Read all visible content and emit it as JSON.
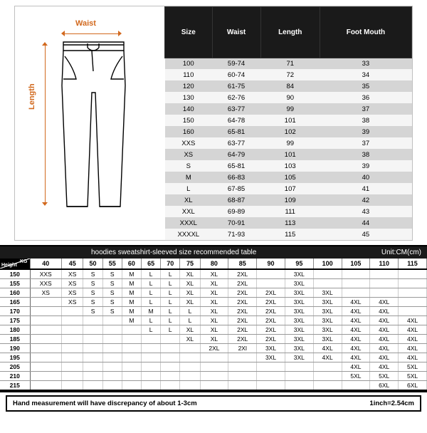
{
  "diagram": {
    "waist_label": "Waist",
    "length_label": "Length",
    "arrow_color": "#d2691e",
    "pants_stroke": "#000000"
  },
  "size_table": {
    "headers": [
      "Size",
      "Waist",
      "Length",
      "Foot Mouth"
    ],
    "header_bg": "#1a1a1a",
    "header_fg": "#ffffff",
    "row_alt_bg": "#d5d5d5",
    "row_bg": "#f5f5f5",
    "rows": [
      [
        "100",
        "59-74",
        "71",
        "33"
      ],
      [
        "110",
        "60-74",
        "72",
        "34"
      ],
      [
        "120",
        "61-75",
        "84",
        "35"
      ],
      [
        "130",
        "62-76",
        "90",
        "36"
      ],
      [
        "140",
        "63-77",
        "99",
        "37"
      ],
      [
        "150",
        "64-78",
        "101",
        "38"
      ],
      [
        "160",
        "65-81",
        "102",
        "39"
      ],
      [
        "XXS",
        "63-77",
        "99",
        "37"
      ],
      [
        "XS",
        "64-79",
        "101",
        "38"
      ],
      [
        "S",
        "65-81",
        "103",
        "39"
      ],
      [
        "M",
        "66-83",
        "105",
        "40"
      ],
      [
        "L",
        "67-85",
        "107",
        "41"
      ],
      [
        "XL",
        "68-87",
        "109",
        "42"
      ],
      [
        "XXL",
        "69-89",
        "111",
        "43"
      ],
      [
        "XXXL",
        "70-91",
        "113",
        "44"
      ],
      [
        "XXXXL",
        "71-93",
        "115",
        "45"
      ]
    ]
  },
  "rec_table": {
    "title": "hoodies sweatshirt-sleeved size recommended table",
    "unit": "Unit:CM(cm)",
    "kg_label": "KG",
    "height_label": "Height",
    "weights": [
      "40",
      "45",
      "50",
      "55",
      "60",
      "65",
      "70",
      "75",
      "80",
      "85",
      "90",
      "95",
      "100",
      "105",
      "110",
      "115"
    ],
    "rows": [
      {
        "h": "150",
        "c": [
          "XXS",
          "XS",
          "S",
          "S",
          "M",
          "L",
          "L",
          "XL",
          "XL",
          "2XL",
          "",
          "3XL",
          "",
          "",
          "",
          ""
        ]
      },
      {
        "h": "155",
        "c": [
          "XXS",
          "XS",
          "S",
          "S",
          "M",
          "L",
          "L",
          "XL",
          "XL",
          "2XL",
          "",
          "3XL",
          "",
          "",
          "",
          ""
        ]
      },
      {
        "h": "160",
        "c": [
          "XS",
          "XS",
          "S",
          "S",
          "M",
          "L",
          "L",
          "XL",
          "XL",
          "2XL",
          "2XL",
          "3XL",
          "3XL",
          "",
          "",
          ""
        ]
      },
      {
        "h": "165",
        "c": [
          "",
          "XS",
          "S",
          "S",
          "M",
          "L",
          "L",
          "XL",
          "XL",
          "2XL",
          "2XL",
          "3XL",
          "3XL",
          "4XL",
          "4XL",
          ""
        ]
      },
      {
        "h": "170",
        "c": [
          "",
          "",
          "S",
          "S",
          "M",
          "M",
          "L",
          "L",
          "XL",
          "2XL",
          "2XL",
          "3XL",
          "3XL",
          "4XL",
          "4XL",
          ""
        ]
      },
      {
        "h": "175",
        "c": [
          "",
          "",
          "",
          "",
          "M",
          "L",
          "L",
          "L",
          "XL",
          "2XL",
          "2XL",
          "3XL",
          "3XL",
          "4XL",
          "4XL",
          "4XL"
        ]
      },
      {
        "h": "180",
        "c": [
          "",
          "",
          "",
          "",
          "",
          "L",
          "L",
          "XL",
          "XL",
          "2XL",
          "2XL",
          "3XL",
          "3XL",
          "4XL",
          "4XL",
          "4XL"
        ]
      },
      {
        "h": "185",
        "c": [
          "",
          "",
          "",
          "",
          "",
          "",
          "",
          "XL",
          "XL",
          "2XL",
          "2XL",
          "3XL",
          "3XL",
          "4XL",
          "4XL",
          "4XL"
        ]
      },
      {
        "h": "190",
        "c": [
          "",
          "",
          "",
          "",
          "",
          "",
          "",
          "",
          "2XL",
          "2Xl",
          "3XL",
          "3XL",
          "4XL",
          "4XL",
          "4XL",
          "4XL"
        ]
      },
      {
        "h": "195",
        "c": [
          "",
          "",
          "",
          "",
          "",
          "",
          "",
          "",
          "",
          "",
          "3XL",
          "3XL",
          "4XL",
          "4XL",
          "4XL",
          "4XL"
        ]
      },
      {
        "h": "205",
        "c": [
          "",
          "",
          "",
          "",
          "",
          "",
          "",
          "",
          "",
          "",
          "",
          "",
          "",
          "4XL",
          "4XL",
          "5XL"
        ]
      },
      {
        "h": "210",
        "c": [
          "",
          "",
          "",
          "",
          "",
          "",
          "",
          "",
          "",
          "",
          "",
          "",
          "",
          "5XL",
          "5XL",
          "5XL"
        ]
      },
      {
        "h": "215",
        "c": [
          "",
          "",
          "",
          "",
          "",
          "",
          "",
          "",
          "",
          "",
          "",
          "",
          "",
          "",
          "6XL",
          "6XL"
        ]
      }
    ]
  },
  "footer": {
    "note": "Hand measurement will have discrepancy of about  1-3cm",
    "conv": "1inch=2.54cm"
  }
}
